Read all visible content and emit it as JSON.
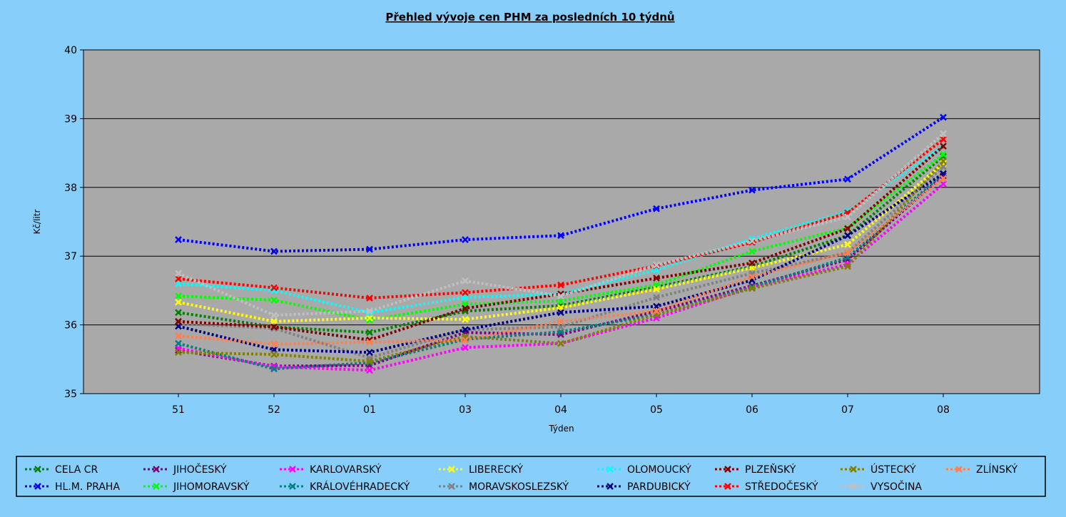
{
  "chart_data": {
    "type": "line",
    "title": "Přehled vývoje cen PHM za posledních 10 týdnů",
    "xlabel": "Týden",
    "ylabel": "Kč/litr",
    "ylim": [
      35,
      40
    ],
    "yticks": [
      "35",
      "36",
      "37",
      "38",
      "39",
      "40"
    ],
    "categories": [
      "51",
      "52",
      "01",
      "03",
      "04",
      "05",
      "06",
      "07",
      "08"
    ],
    "grid": true,
    "legend_position": "bottom",
    "series": [
      {
        "name": "CELA CR",
        "color": "#008000",
        "values": [
          36.18,
          35.97,
          35.89,
          36.2,
          36.28,
          36.55,
          36.85,
          37.3,
          38.45
        ]
      },
      {
        "name": "HL.M. PRAHA",
        "color": "#0000ff",
        "values": [
          37.24,
          37.07,
          37.1,
          37.24,
          37.3,
          37.69,
          37.96,
          38.12,
          39.02
        ]
      },
      {
        "name": "JIHOČESKÝ",
        "color": "#800080",
        "values": [
          35.63,
          35.4,
          35.41,
          35.89,
          35.86,
          36.2,
          36.57,
          36.95,
          38.17
        ]
      },
      {
        "name": "JIHOMORAVSKÝ",
        "color": "#00ff00",
        "values": [
          36.42,
          36.36,
          36.07,
          36.3,
          36.35,
          36.58,
          37.07,
          37.41,
          38.48
        ]
      },
      {
        "name": "KARLOVARSKÝ",
        "color": "#ff00ff",
        "values": [
          35.66,
          35.39,
          35.34,
          35.67,
          35.73,
          36.1,
          36.55,
          36.88,
          38.05
        ]
      },
      {
        "name": "KRÁLOVÉHRADECKÝ",
        "color": "#008080",
        "values": [
          35.73,
          35.36,
          35.45,
          35.79,
          35.9,
          36.15,
          36.55,
          36.98,
          38.2
        ]
      },
      {
        "name": "LIBERECKÝ",
        "color": "#ffff00",
        "values": [
          36.33,
          36.05,
          36.1,
          36.08,
          36.25,
          36.52,
          36.83,
          37.17,
          38.35
        ]
      },
      {
        "name": "MORAVSKOSLEZSKÝ",
        "color": "#808080",
        "values": [
          36.02,
          35.95,
          35.52,
          35.93,
          35.97,
          36.4,
          36.75,
          37.05,
          38.3
        ]
      },
      {
        "name": "OLOMOUCKÝ",
        "color": "#00ffff",
        "values": [
          36.6,
          36.5,
          36.18,
          36.4,
          36.45,
          36.8,
          37.25,
          37.65,
          38.6
        ]
      },
      {
        "name": "PARDUBICKÝ",
        "color": "#000080",
        "values": [
          35.98,
          35.64,
          35.6,
          35.93,
          36.18,
          36.27,
          36.65,
          37.3,
          38.2
        ]
      },
      {
        "name": "PLZEŇSKÝ",
        "color": "#800000",
        "values": [
          36.05,
          35.97,
          35.78,
          36.24,
          36.45,
          36.68,
          36.9,
          37.4,
          38.6
        ]
      },
      {
        "name": "STŘEDOČESKÝ",
        "color": "#ff0000",
        "values": [
          36.67,
          36.54,
          36.39,
          36.47,
          36.58,
          36.86,
          37.2,
          37.63,
          38.7
        ]
      },
      {
        "name": "ÚSTECKÝ",
        "color": "#808000",
        "values": [
          35.6,
          35.57,
          35.47,
          35.83,
          35.73,
          36.15,
          36.53,
          36.85,
          38.38
        ]
      },
      {
        "name": "VYSOČINA",
        "color": "#c0c0c0",
        "values": [
          36.75,
          36.14,
          36.2,
          36.64,
          36.42,
          36.87,
          37.22,
          37.57,
          38.78
        ]
      },
      {
        "name": "ZLÍNSKÝ",
        "color": "#ff7f50",
        "values": [
          35.84,
          35.72,
          35.75,
          35.78,
          36.05,
          36.2,
          36.7,
          37.05,
          38.13
        ]
      }
    ]
  }
}
